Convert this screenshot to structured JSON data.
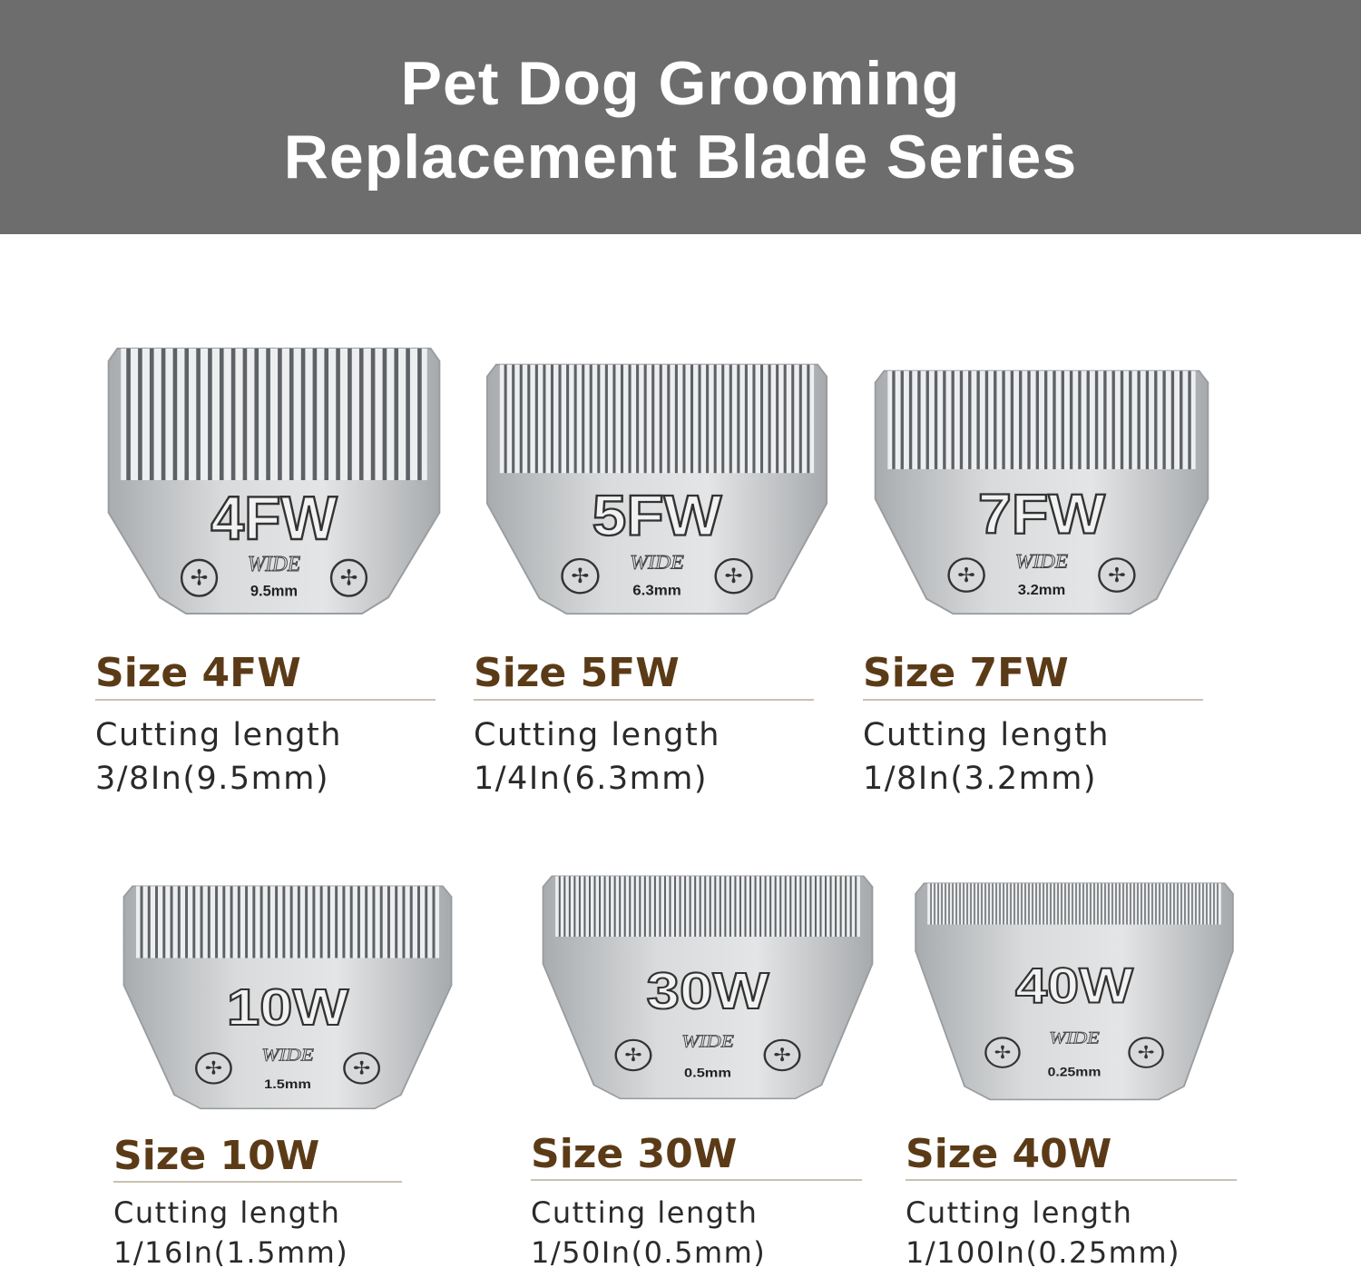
{
  "header": {
    "title_line1": "Pet Dog Grooming",
    "title_line2": "Replacement Blade Series"
  },
  "colors": {
    "header_bg": "#6d6d6d",
    "size_label": "#5b3b17",
    "blade_steel": "#c4c6c8"
  },
  "blades": [
    {
      "code": "4FW",
      "wide": "WIDE",
      "mm": "9.5mm",
      "size_label": "Size 4FW",
      "cut_label": "Cutting length",
      "cut_value": "3/8In(9.5mm)",
      "teeth": 26
    },
    {
      "code": "5FW",
      "wide": "WIDE",
      "mm": "6.3mm",
      "size_label": "Size 5FW",
      "cut_label": "Cutting length",
      "cut_value": "1/4In(6.3mm)",
      "teeth": 40
    },
    {
      "code": "7FW",
      "wide": "WIDE",
      "mm": "3.2mm",
      "size_label": "Size 7FW",
      "cut_label": "Cutting length",
      "cut_value": "1/8In(3.2mm)",
      "teeth": 36
    },
    {
      "code": "10W",
      "wide": "WIDE",
      "mm": "1.5mm",
      "size_label": "Size 10W",
      "cut_label": "Cutting length",
      "cut_value": "1/16In(1.5mm)",
      "teeth": 40
    },
    {
      "code": "30W",
      "wide": "WIDE",
      "mm": "0.5mm",
      "size_label": "Size 30W",
      "cut_label": "Cutting length",
      "cut_value": "1/50In(0.5mm)",
      "teeth": 60
    },
    {
      "code": "40W",
      "wide": "WIDE",
      "mm": "0.25mm",
      "size_label": "Size 40W",
      "cut_label": "Cutting length",
      "cut_value": "1/100In(0.25mm)",
      "teeth": 80
    }
  ]
}
